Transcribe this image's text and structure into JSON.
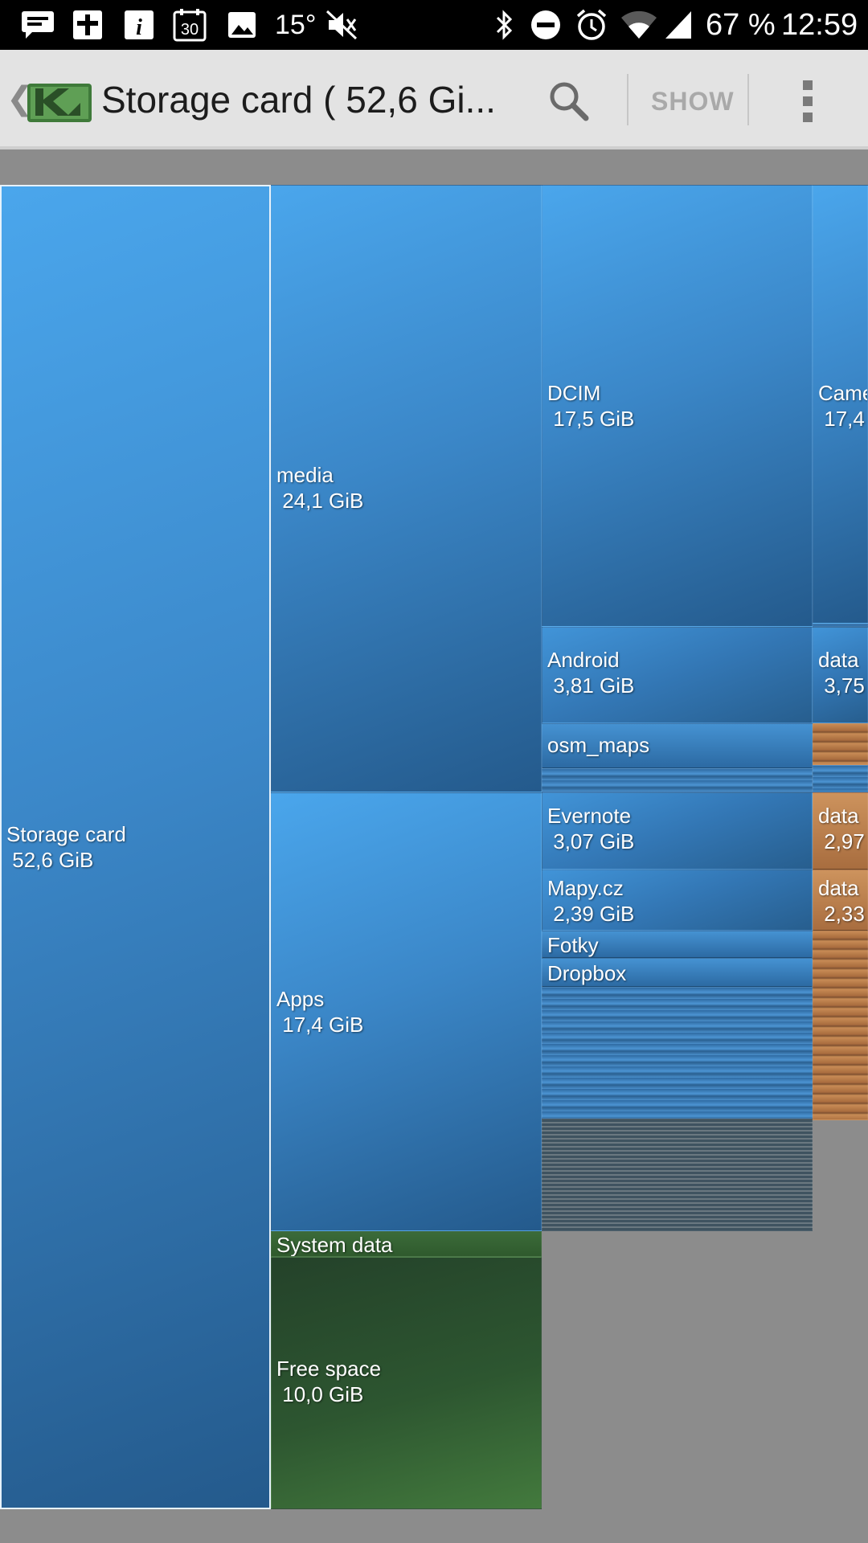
{
  "statusbar": {
    "temperature": "15°",
    "battery": "67 %",
    "time": "12:59",
    "icons_left": [
      "message-icon",
      "plus-box-icon",
      "info-icon",
      "calendar-icon",
      "image-icon"
    ],
    "icons_right": [
      "bluetooth-icon",
      "do-not-disturb-icon",
      "alarm-icon",
      "wifi-icon",
      "signal-icon"
    ],
    "calendar_day": "30"
  },
  "appbar": {
    "title": "Storage card ( 52,6 Gi...",
    "show_label": "SHOW",
    "back_glyph": "❮"
  },
  "colors": {
    "accent_blue": "#3b87c8",
    "file_orange": "#b97a48",
    "free_green": "#2d5630",
    "background": "#8c8c8c"
  },
  "treemap": {
    "root": {
      "name": "Storage card",
      "size": "52,6 GiB"
    },
    "media": {
      "name": "media",
      "size": "24,1 GiB"
    },
    "apps": {
      "name": "Apps",
      "size": "17,4 GiB"
    },
    "system": {
      "name": "System data"
    },
    "free": {
      "name": "Free space",
      "size": "10,0 GiB"
    },
    "dcim": {
      "name": "DCIM",
      "size": "17,5 GiB"
    },
    "camera": {
      "name": "Came",
      "size": "17,4"
    },
    "android": {
      "name": "Android",
      "size": "3,81 GiB"
    },
    "android_data": {
      "name": "data",
      "size": "3,75"
    },
    "osm": {
      "name": "osm_maps"
    },
    "evernote": {
      "name": "Evernote",
      "size": "3,07 GiB"
    },
    "evernote_data": {
      "name": "data",
      "size": "2,97"
    },
    "mapy": {
      "name": "Mapy.cz",
      "size": "2,39 GiB"
    },
    "mapy_data": {
      "name": "data",
      "size": "2,33"
    },
    "fotky": {
      "name": "Fotky"
    },
    "dropbox": {
      "name": "Dropbox"
    }
  }
}
